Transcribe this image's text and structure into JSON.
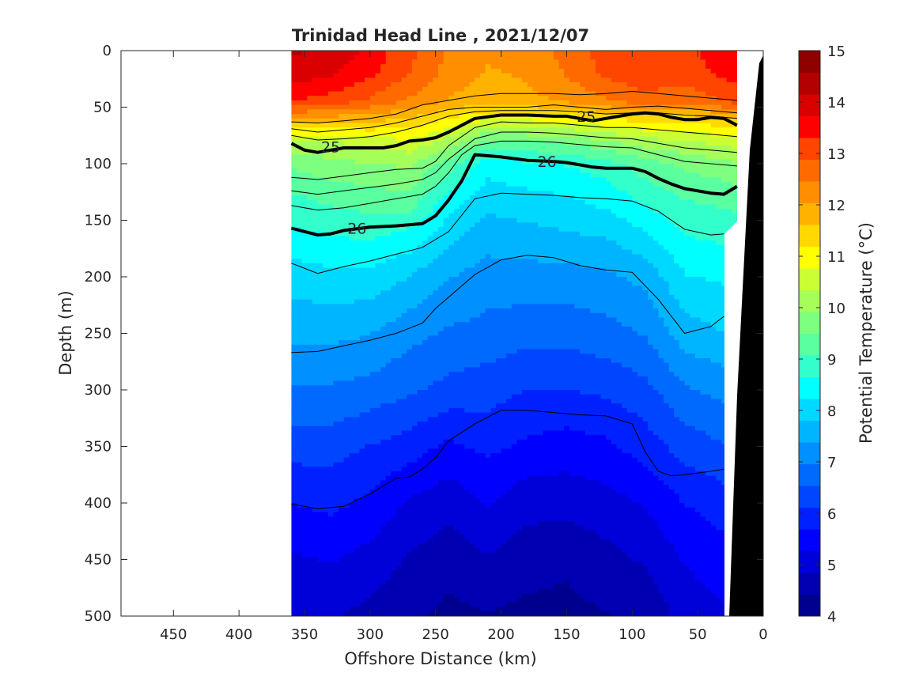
{
  "chart_data": {
    "type": "heatmap",
    "title": "Trinidad Head Line , 2021/12/07",
    "xlabel": "Offshore Distance (km)",
    "ylabel": "Depth (m)",
    "colorbar_label": "Potential Temperature (°C)",
    "xlim": [
      490,
      0
    ],
    "ylim": [
      0,
      500
    ],
    "x_ticks": [
      450,
      400,
      350,
      300,
      250,
      200,
      150,
      100,
      50,
      0
    ],
    "y_ticks": [
      0,
      50,
      100,
      150,
      200,
      250,
      300,
      350,
      400,
      450,
      500
    ],
    "colorbar_ticks": [
      15,
      14,
      13,
      12,
      11,
      10,
      9,
      8,
      7,
      6,
      5,
      4
    ],
    "clim": [
      4,
      15
    ],
    "data_extent_km": [
      360,
      20
    ],
    "levels": [
      4,
      4.5,
      5,
      5.5,
      6,
      6.5,
      7,
      7.5,
      8,
      8.5,
      9,
      9.5,
      10,
      10.5,
      11,
      11.5,
      12,
      12.5,
      13,
      13.5,
      14,
      14.5,
      15
    ],
    "colors": [
      "#00008f",
      "#0000b3",
      "#0000d9",
      "#0000ff",
      "#0020ff",
      "#0045ff",
      "#006aff",
      "#0090ff",
      "#00b5ff",
      "#00d9ff",
      "#00ffff",
      "#33ffcc",
      "#5aff9f",
      "#7fff7f",
      "#a6ff59",
      "#ccff33",
      "#ffff00",
      "#ffd900",
      "#ffb300",
      "#ff8f00",
      "#ff6a00",
      "#ff4500",
      "#ff0000",
      "#da0000",
      "#b30000",
      "#8f0000"
    ],
    "temperature_profiles": {
      "x_km": [
        360,
        330,
        300,
        270,
        240,
        210,
        180,
        150,
        120,
        90,
        60,
        30,
        20
      ],
      "depths_m": [
        0,
        20,
        45,
        60,
        80,
        100,
        130,
        160,
        200,
        250,
        300,
        350,
        400,
        450,
        500
      ],
      "temperature_c": [
        [
          14.2,
          14.0,
          13.3,
          12.0,
          10.3,
          9.6,
          9.0,
          8.6,
          8.0,
          7.5,
          6.9,
          6.3,
          5.7,
          5.2,
          4.9
        ],
        [
          14.1,
          13.8,
          13.1,
          11.9,
          10.3,
          9.8,
          9.2,
          8.7,
          8.1,
          7.5,
          6.9,
          6.3,
          5.8,
          5.3,
          4.9
        ],
        [
          13.6,
          13.4,
          12.8,
          11.8,
          10.6,
          9.9,
          9.3,
          8.8,
          8.1,
          7.4,
          6.8,
          6.1,
          5.6,
          5.1,
          4.7
        ],
        [
          13.0,
          12.9,
          12.4,
          11.6,
          10.7,
          10.0,
          9.4,
          8.6,
          7.8,
          7.1,
          6.6,
          5.9,
          5.2,
          4.8,
          4.5
        ],
        [
          12.4,
          12.3,
          12.0,
          11.2,
          10.2,
          9.3,
          8.5,
          8.0,
          7.4,
          6.9,
          6.4,
          5.6,
          5.0,
          4.6,
          4.3
        ],
        [
          12.1,
          12.0,
          11.8,
          10.8,
          9.4,
          8.4,
          8.0,
          7.6,
          7.2,
          6.8,
          6.3,
          5.8,
          5.3,
          4.8,
          4.4
        ],
        [
          12.2,
          12.1,
          11.9,
          10.9,
          9.5,
          8.6,
          8.1,
          7.7,
          7.2,
          6.7,
          6.1,
          5.6,
          5.0,
          4.6,
          4.3
        ],
        [
          12.6,
          12.5,
          12.1,
          11.0,
          9.6,
          8.7,
          8.2,
          7.8,
          7.2,
          6.7,
          6.1,
          5.5,
          5.0,
          4.5,
          4.3
        ],
        [
          13.1,
          13.0,
          12.4,
          11.2,
          9.9,
          8.9,
          8.4,
          7.9,
          7.3,
          6.8,
          6.2,
          5.6,
          5.1,
          4.7,
          4.4
        ],
        [
          13.3,
          13.2,
          12.7,
          11.4,
          10.2,
          9.3,
          8.8,
          8.2,
          7.5,
          7.0,
          6.4,
          5.9,
          5.3,
          4.9,
          4.5
        ],
        [
          13.2,
          13.1,
          12.6,
          11.4,
          10.3,
          9.6,
          9.1,
          8.7,
          8.2,
          7.6,
          6.9,
          6.3,
          5.7,
          5.3,
          5.0
        ],
        [
          13.5,
          13.4,
          12.9,
          11.6,
          10.5,
          9.8,
          9.2,
          8.8,
          8.3,
          7.8,
          7.1,
          6.5,
          5.9,
          5.5,
          5.2
        ],
        [
          13.6,
          13.5,
          13.0,
          11.7,
          10.6,
          9.9,
          9.3,
          8.8,
          8.3,
          7.8,
          7.2,
          6.6,
          6.0,
          5.6,
          5.3
        ]
      ]
    },
    "density_contours": [
      {
        "sigma": 25,
        "labels": [
          "25",
          "25"
        ],
        "bold": true,
        "x": [
          360,
          350,
          340,
          330,
          320,
          300,
          290,
          280,
          270,
          260,
          250,
          240,
          220,
          200,
          180,
          160,
          150,
          140,
          130,
          120,
          110,
          100,
          90,
          80,
          70,
          60,
          50,
          40,
          30,
          20
        ],
        "y": [
          82,
          88,
          90,
          88,
          86,
          86,
          86,
          84,
          80,
          79,
          77,
          72,
          60,
          57,
          57,
          58,
          58,
          60,
          62,
          60,
          58,
          56,
          55,
          56,
          59,
          61,
          61,
          59,
          60,
          66
        ]
      },
      {
        "sigma": 26,
        "labels": [
          "26",
          "26"
        ],
        "bold": true,
        "x": [
          360,
          350,
          340,
          330,
          320,
          300,
          280,
          260,
          250,
          240,
          230,
          220,
          200,
          180,
          160,
          150,
          140,
          130,
          120,
          110,
          100,
          90,
          80,
          70,
          60,
          50,
          40,
          30,
          20
        ],
        "y": [
          157,
          160,
          163,
          162,
          159,
          156,
          155,
          153,
          146,
          132,
          115,
          92,
          94,
          97,
          98,
          99,
          101,
          103,
          104,
          104,
          104,
          107,
          113,
          118,
          122,
          124,
          126,
          127,
          120
        ]
      }
    ],
    "thin_contours": [
      {
        "x": [
          360,
          340,
          320,
          300,
          280,
          260,
          240,
          220,
          200,
          180,
          160,
          140,
          120,
          100,
          80,
          60,
          40,
          20
        ],
        "y": [
          63,
          64,
          62,
          60,
          56,
          48,
          44,
          40,
          38,
          38,
          38,
          39,
          38,
          36,
          38,
          40,
          42,
          44
        ]
      },
      {
        "x": [
          360,
          340,
          320,
          300,
          280,
          260,
          240,
          220,
          200,
          180,
          160,
          140,
          120,
          100,
          80,
          60,
          40,
          20
        ],
        "y": [
          69,
          72,
          70,
          68,
          64,
          58,
          52,
          50,
          50,
          50,
          48,
          50,
          52,
          50,
          49,
          51,
          53,
          55
        ]
      },
      {
        "x": [
          360,
          340,
          320,
          300,
          280,
          260,
          240,
          220,
          200,
          180,
          160,
          140,
          120,
          100,
          80,
          60,
          40,
          20
        ],
        "y": [
          75,
          79,
          78,
          76,
          72,
          66,
          58,
          54,
          53,
          53,
          53,
          54,
          56,
          55,
          55,
          57,
          58,
          60
        ]
      },
      {
        "x": [
          360,
          340,
          320,
          300,
          280,
          260,
          250,
          240,
          220,
          200,
          180,
          160,
          140,
          120,
          100,
          80,
          60,
          40,
          20
        ],
        "y": [
          112,
          114,
          111,
          108,
          105,
          104,
          98,
          84,
          68,
          63,
          64,
          64,
          66,
          68,
          68,
          70,
          72,
          74,
          76
        ]
      },
      {
        "x": [
          360,
          340,
          320,
          300,
          280,
          260,
          250,
          240,
          220,
          200,
          180,
          160,
          140,
          120,
          100,
          80,
          60,
          40,
          20
        ],
        "y": [
          124,
          127,
          124,
          121,
          118,
          114,
          108,
          96,
          78,
          72,
          72,
          73,
          75,
          77,
          78,
          82,
          86,
          88,
          90
        ]
      },
      {
        "x": [
          360,
          340,
          320,
          300,
          280,
          260,
          250,
          240,
          230,
          220,
          200,
          180,
          160,
          140,
          120,
          100,
          80,
          60,
          40,
          20
        ],
        "y": [
          137,
          141,
          139,
          135,
          131,
          127,
          120,
          108,
          92,
          84,
          80,
          80,
          81,
          83,
          85,
          86,
          92,
          98,
          100,
          102
        ]
      },
      {
        "x": [
          360,
          340,
          320,
          300,
          280,
          260,
          240,
          220,
          200,
          180,
          160,
          140,
          120,
          100,
          80,
          60,
          40,
          30
        ],
        "y": [
          188,
          197,
          191,
          186,
          180,
          174,
          160,
          131,
          126,
          127,
          128,
          130,
          131,
          133,
          142,
          158,
          163,
          162
        ]
      },
      {
        "x": [
          360,
          340,
          320,
          300,
          280,
          260,
          250,
          240,
          220,
          200,
          180,
          160,
          140,
          120,
          100,
          80,
          60,
          40,
          30
        ],
        "y": [
          267,
          266,
          261,
          256,
          250,
          241,
          228,
          218,
          198,
          185,
          181,
          183,
          190,
          194,
          196,
          220,
          250,
          244,
          235
        ]
      },
      {
        "x": [
          360,
          340,
          320,
          300,
          280,
          270,
          260,
          250,
          240,
          220,
          200,
          180,
          160,
          140,
          120,
          100,
          90,
          80,
          70,
          60,
          40,
          30
        ],
        "y": [
          401,
          405,
          403,
          392,
          378,
          377,
          370,
          360,
          345,
          330,
          318,
          318,
          320,
          322,
          323,
          330,
          355,
          372,
          376,
          375,
          372,
          370
        ]
      }
    ]
  }
}
